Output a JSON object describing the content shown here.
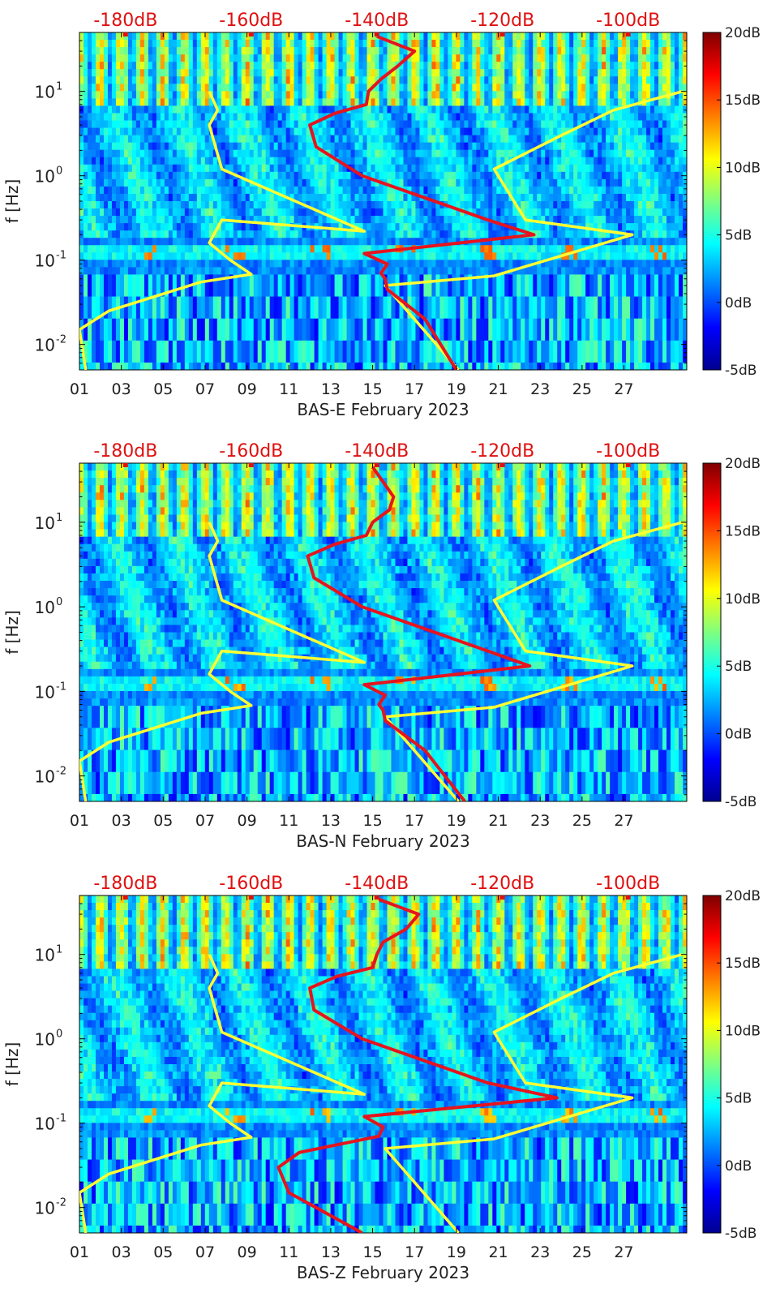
{
  "colors": {
    "colormap": [
      "#00008f",
      "#0000ff",
      "#007fff",
      "#00ffff",
      "#7fff7f",
      "#ffff00",
      "#ff7f00",
      "#ff0000",
      "#7f0000"
    ],
    "noise_model_line": "#ffff33",
    "psd_line": "#e6141e",
    "top_axis_text": "#e01010",
    "axis_text": "#222222"
  },
  "chart_data": [
    {
      "type": "heatmap",
      "title": "BAS-E February 2023",
      "xlabel": "BAS-E February 2023",
      "ylabel": "f [Hz]",
      "xlim": [
        1,
        30
      ],
      "ylim": [
        0.005,
        50
      ],
      "x_ticks": [
        "01",
        "03",
        "05",
        "07",
        "09",
        "11",
        "13",
        "15",
        "17",
        "19",
        "21",
        "23",
        "25",
        "27"
      ],
      "y_ticks": [
        {
          "value": 0.01,
          "base": "10",
          "exp": "-2"
        },
        {
          "value": 0.1,
          "base": "10",
          "exp": "-1"
        },
        {
          "value": 1,
          "base": "10",
          "exp": "0"
        },
        {
          "value": 10,
          "base": "10",
          "exp": "1"
        }
      ],
      "top_axis_ticks": [
        {
          "day": 3.2,
          "label": "-180dB"
        },
        {
          "day": 9.2,
          "label": "-160dB"
        },
        {
          "day": 15.2,
          "label": "-140dB"
        },
        {
          "day": 21.2,
          "label": "-120dB"
        },
        {
          "day": 27.2,
          "label": "-100dB"
        }
      ],
      "colorbar": {
        "ticks": [
          "20dB",
          "15dB",
          "10dB",
          "5dB",
          "0dB",
          "-5dB"
        ],
        "range": [
          -5,
          20
        ]
      },
      "series": [
        {
          "name": "low noise model",
          "x": [
            1.3,
            1.0,
            2.4,
            6.8,
            9.2,
            8.2,
            7.2,
            7.8,
            14.6,
            7.8,
            7.2,
            7.6,
            7.2
          ],
          "f": [
            0.005,
            0.015,
            0.025,
            0.055,
            0.068,
            0.1,
            0.16,
            0.3,
            0.22,
            1.2,
            4,
            6,
            10
          ]
        },
        {
          "name": "high noise model",
          "x": [
            19.1,
            15.6,
            20.8,
            27.4,
            22.3,
            20.8,
            24.0,
            26.5,
            29.8
          ],
          "f": [
            0.005,
            0.05,
            0.065,
            0.2,
            0.3,
            1.2,
            3,
            6,
            10
          ]
        },
        {
          "name": "measured PSD",
          "x": [
            19.0,
            17.5,
            15.7,
            15.6,
            15.4,
            15.7,
            14.6,
            22.7,
            20.5,
            14.5,
            12.3,
            12.0,
            13.2,
            14.7,
            14.8,
            15.4,
            16.2,
            17.0,
            15.2
          ],
          "f": [
            0.005,
            0.02,
            0.045,
            0.06,
            0.07,
            0.09,
            0.12,
            0.2,
            0.3,
            1.0,
            2.2,
            4.0,
            5.5,
            7.0,
            10.0,
            14.0,
            20.0,
            30.0,
            45.0
          ]
        }
      ]
    },
    {
      "type": "heatmap",
      "title": "BAS-N February 2023",
      "xlabel": "BAS-N February 2023",
      "ylabel": "f [Hz]",
      "xlim": [
        1,
        30
      ],
      "ylim": [
        0.005,
        50
      ],
      "x_ticks": [
        "01",
        "03",
        "05",
        "07",
        "09",
        "11",
        "13",
        "15",
        "17",
        "19",
        "21",
        "23",
        "25",
        "27"
      ],
      "y_ticks": [
        {
          "value": 0.01,
          "base": "10",
          "exp": "-2"
        },
        {
          "value": 0.1,
          "base": "10",
          "exp": "-1"
        },
        {
          "value": 1,
          "base": "10",
          "exp": "0"
        },
        {
          "value": 10,
          "base": "10",
          "exp": "1"
        }
      ],
      "top_axis_ticks": [
        {
          "day": 3.2,
          "label": "-180dB"
        },
        {
          "day": 9.2,
          "label": "-160dB"
        },
        {
          "day": 15.2,
          "label": "-140dB"
        },
        {
          "day": 21.2,
          "label": "-120dB"
        },
        {
          "day": 27.2,
          "label": "-100dB"
        }
      ],
      "colorbar": {
        "ticks": [
          "20dB",
          "15dB",
          "10dB",
          "5dB",
          "0dB",
          "-5dB"
        ],
        "range": [
          -5,
          20
        ]
      },
      "series": [
        {
          "name": "low noise model",
          "x": [
            1.3,
            1.0,
            2.4,
            6.8,
            9.2,
            8.2,
            7.2,
            7.8,
            14.6,
            7.8,
            7.2,
            7.6,
            7.2
          ],
          "f": [
            0.005,
            0.015,
            0.025,
            0.055,
            0.068,
            0.1,
            0.16,
            0.3,
            0.22,
            1.2,
            4,
            6,
            10
          ]
        },
        {
          "name": "high noise model",
          "x": [
            19.1,
            15.6,
            20.8,
            27.4,
            22.3,
            20.8,
            24.0,
            26.5,
            29.8
          ],
          "f": [
            0.005,
            0.05,
            0.065,
            0.2,
            0.3,
            1.2,
            3,
            6,
            10
          ]
        },
        {
          "name": "measured PSD",
          "x": [
            19.4,
            17.5,
            15.6,
            15.5,
            15.3,
            15.6,
            14.6,
            22.5,
            20.5,
            14.5,
            12.2,
            11.9,
            13.2,
            14.7,
            15.0,
            15.8,
            16.0,
            15.5,
            15.0
          ],
          "f": [
            0.005,
            0.02,
            0.045,
            0.06,
            0.07,
            0.09,
            0.12,
            0.2,
            0.3,
            1.0,
            2.2,
            4.0,
            5.5,
            7.0,
            10.0,
            14.0,
            20.0,
            30.0,
            45.0
          ]
        }
      ]
    },
    {
      "type": "heatmap",
      "title": "BAS-Z February 2023",
      "xlabel": "BAS-Z February 2023",
      "ylabel": "f [Hz]",
      "xlim": [
        1,
        30
      ],
      "ylim": [
        0.005,
        50
      ],
      "x_ticks": [
        "01",
        "03",
        "05",
        "07",
        "09",
        "11",
        "13",
        "15",
        "17",
        "19",
        "21",
        "23",
        "25",
        "27"
      ],
      "y_ticks": [
        {
          "value": 0.01,
          "base": "10",
          "exp": "-2"
        },
        {
          "value": 0.1,
          "base": "10",
          "exp": "-1"
        },
        {
          "value": 1,
          "base": "10",
          "exp": "0"
        },
        {
          "value": 10,
          "base": "10",
          "exp": "1"
        }
      ],
      "top_axis_ticks": [
        {
          "day": 3.2,
          "label": "-180dB"
        },
        {
          "day": 9.2,
          "label": "-160dB"
        },
        {
          "day": 15.2,
          "label": "-140dB"
        },
        {
          "day": 21.2,
          "label": "-120dB"
        },
        {
          "day": 27.2,
          "label": "-100dB"
        }
      ],
      "colorbar": {
        "ticks": [
          "20dB",
          "15dB",
          "10dB",
          "5dB",
          "0dB",
          "-5dB"
        ],
        "range": [
          -5,
          20
        ]
      },
      "series": [
        {
          "name": "low noise model",
          "x": [
            1.3,
            1.0,
            2.4,
            6.8,
            9.2,
            8.2,
            7.2,
            7.8,
            14.6,
            7.8,
            7.2,
            7.6,
            7.2
          ],
          "f": [
            0.005,
            0.015,
            0.025,
            0.055,
            0.068,
            0.1,
            0.16,
            0.3,
            0.22,
            1.2,
            4,
            6,
            10
          ]
        },
        {
          "name": "high noise model",
          "x": [
            19.1,
            15.6,
            20.8,
            27.4,
            22.3,
            20.8,
            24.0,
            26.5,
            29.8
          ],
          "f": [
            0.005,
            0.05,
            0.065,
            0.2,
            0.3,
            1.2,
            3,
            6,
            10
          ]
        },
        {
          "name": "measured PSD",
          "x": [
            14.5,
            11.0,
            10.5,
            11.5,
            15.3,
            15.5,
            14.6,
            23.8,
            20.5,
            14.5,
            12.2,
            12.0,
            13.3,
            15.0,
            15.2,
            15.5,
            16.6,
            17.2,
            15.3
          ],
          "f": [
            0.005,
            0.015,
            0.03,
            0.045,
            0.07,
            0.09,
            0.12,
            0.2,
            0.3,
            1.0,
            2.2,
            4.0,
            5.5,
            7.0,
            10.0,
            14.0,
            20.0,
            30.0,
            45.0
          ]
        }
      ]
    }
  ]
}
